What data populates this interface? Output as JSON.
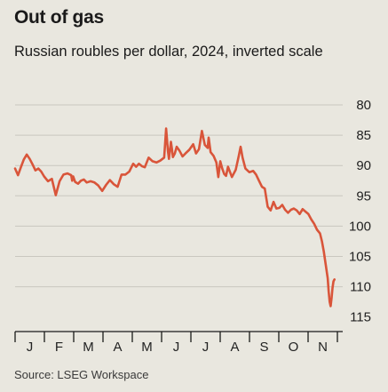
{
  "header": {
    "title": "Out of gas",
    "subtitle": "Russian roubles per dollar, 2024, inverted scale"
  },
  "footer": {
    "source": "Source: LSEG Workspace"
  },
  "colors": {
    "line": "#d9553a",
    "background": "#e9e7df",
    "grid": "#c9c7bf",
    "axis": "#1a1a1a"
  },
  "chart_data": {
    "type": "line",
    "title": "Out of gas",
    "subtitle": "Russian roubles per dollar, 2024, inverted scale",
    "xlabel": "",
    "ylabel": "",
    "y_inverted": true,
    "ylim": [
      80,
      115
    ],
    "yticks": [
      80,
      85,
      90,
      95,
      100,
      105,
      110,
      115
    ],
    "xlim": [
      0,
      333
    ],
    "month_labels": [
      "J",
      "F",
      "M",
      "A",
      "M",
      "J",
      "J",
      "A",
      "S",
      "O",
      "N"
    ],
    "grid": true,
    "series": [
      {
        "name": "",
        "x": [
          0,
          3,
          6,
          9,
          12,
          15,
          18,
          21,
          24,
          27,
          30,
          34,
          38,
          42,
          46,
          50,
          54,
          58,
          59,
          60,
          62,
          65,
          68,
          71,
          74,
          78,
          82,
          86,
          90,
          94,
          98,
          102,
          106,
          110,
          114,
          118,
          122,
          125,
          128,
          131,
          134,
          138,
          142,
          146,
          150,
          154,
          156,
          158,
          159,
          160,
          161,
          162,
          163,
          165,
          167,
          170,
          173,
          176,
          180,
          184,
          187,
          190,
          193,
          196,
          199,
          200,
          202,
          205,
          208,
          210,
          212,
          214,
          216,
          218,
          220,
          224,
          228,
          231,
          233,
          235,
          238,
          242,
          246,
          249,
          252,
          255,
          258,
          261,
          264,
          267,
          270,
          273,
          276,
          279,
          282,
          285,
          288,
          291,
          294,
          297,
          300,
          303,
          306,
          309,
          312,
          315,
          317,
          319,
          321,
          323,
          324,
          325,
          326,
          327,
          328,
          329,
          330
        ],
        "values": [
          90.5,
          91.6,
          90.3,
          89.0,
          88.2,
          88.9,
          89.8,
          90.8,
          90.5,
          91.0,
          91.8,
          92.6,
          92.2,
          94.9,
          92.6,
          91.5,
          91.3,
          91.6,
          92.5,
          91.8,
          92.7,
          93.0,
          92.5,
          92.3,
          92.8,
          92.6,
          92.8,
          93.3,
          94.2,
          93.2,
          92.4,
          93.1,
          93.5,
          91.5,
          91.5,
          91.0,
          89.7,
          90.2,
          89.7,
          90.1,
          90.3,
          88.7,
          89.3,
          89.5,
          89.2,
          88.7,
          83.9,
          87.7,
          88.9,
          87.5,
          86.1,
          87.2,
          88.6,
          88.0,
          86.9,
          87.6,
          88.5,
          88.0,
          87.4,
          86.5,
          88.0,
          87.3,
          84.3,
          86.6,
          87.1,
          85.4,
          87.8,
          88.4,
          89.5,
          91.9,
          89.3,
          90.5,
          91.4,
          91.7,
          90.2,
          91.9,
          90.7,
          88.5,
          86.9,
          88.7,
          90.5,
          91.1,
          90.9,
          91.5,
          92.5,
          93.5,
          93.8,
          96.8,
          97.4,
          96.0,
          97.1,
          97.0,
          96.5,
          97.3,
          97.8,
          97.3,
          97.1,
          97.4,
          98.0,
          97.2,
          97.6,
          98.0,
          98.9,
          99.6,
          100.6,
          101.2,
          102.5,
          104.2,
          106.4,
          108.6,
          110.8,
          112.5,
          113.2,
          111.8,
          110.2,
          109.1,
          108.8
        ]
      }
    ]
  }
}
